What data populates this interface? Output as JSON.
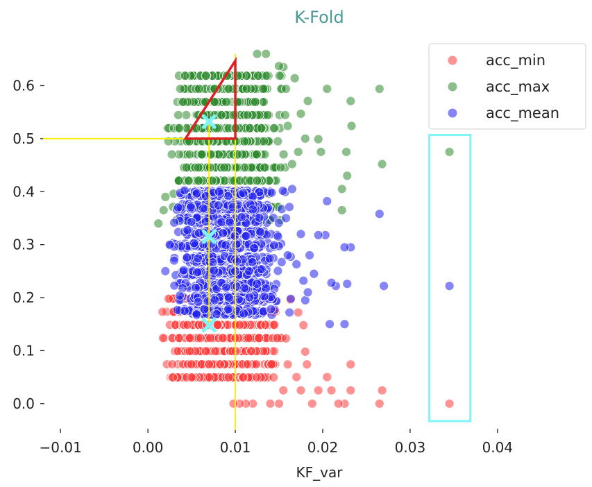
{
  "chart_data": {
    "type": "scatter",
    "title": "K-Fold",
    "xlabel": "KF_var",
    "ylabel": "",
    "xlim": [
      -0.012,
      0.047
    ],
    "ylim": [
      -0.05,
      0.67
    ],
    "x_ticks": [
      "−0.01",
      "0.00",
      "0.01",
      "0.02",
      "0.03",
      "0.04"
    ],
    "x_tick_values": [
      -0.01,
      0.0,
      0.01,
      0.02,
      0.03,
      0.04
    ],
    "y_ticks": [
      "0.0",
      "0.1",
      "0.2",
      "0.3",
      "0.4",
      "0.5",
      "0.6"
    ],
    "y_tick_values": [
      0.0,
      0.1,
      0.2,
      0.3,
      0.4,
      0.5,
      0.6
    ],
    "grid": false,
    "legend_position": "top-right",
    "series": [
      {
        "name": "acc_min",
        "color": "#ff3b3b",
        "cluster": {
          "x_range": [
            0.0015,
            0.0165
          ],
          "y_range": [
            0.025,
            0.22
          ],
          "center_x": 0.0085,
          "count": 1400
        },
        "points": [
          {
            "x": 0.0265,
            "y": 0.0
          },
          {
            "x": 0.0268,
            "y": 0.025
          },
          {
            "x": 0.0345,
            "y": 0.0
          },
          {
            "x": 0.0232,
            "y": 0.025
          },
          {
            "x": 0.0232,
            "y": 0.074
          },
          {
            "x": 0.0225,
            "y": 0.0
          },
          {
            "x": 0.0218,
            "y": 0.0
          },
          {
            "x": 0.021,
            "y": 0.025
          },
          {
            "x": 0.0205,
            "y": 0.05
          },
          {
            "x": 0.0195,
            "y": 0.025
          },
          {
            "x": 0.0188,
            "y": 0.0
          },
          {
            "x": 0.0182,
            "y": 0.074
          },
          {
            "x": 0.018,
            "y": 0.098
          },
          {
            "x": 0.0175,
            "y": 0.025
          },
          {
            "x": 0.017,
            "y": 0.05
          },
          {
            "x": 0.0178,
            "y": 0.148
          },
          {
            "x": 0.0172,
            "y": 0.172
          },
          {
            "x": 0.0163,
            "y": 0.196
          },
          {
            "x": 0.015,
            "y": 0.0
          },
          {
            "x": 0.014,
            "y": 0.0
          },
          {
            "x": 0.012,
            "y": 0.0
          },
          {
            "x": 0.0112,
            "y": 0.0
          },
          {
            "x": 0.0105,
            "y": 0.0
          },
          {
            "x": 0.0098,
            "y": 0.0
          },
          {
            "x": 0.0155,
            "y": 0.025
          },
          {
            "x": 0.016,
            "y": 0.074
          },
          {
            "x": 0.0158,
            "y": 0.123
          }
        ]
      },
      {
        "name": "acc_max",
        "color": "#2e8b2e",
        "cluster": {
          "x_range": [
            0.0018,
            0.0165
          ],
          "y_range": [
            0.34,
            0.635
          ],
          "center_x": 0.009,
          "count": 1400
        },
        "points": [
          {
            "x": 0.0345,
            "y": 0.475
          },
          {
            "x": 0.0268,
            "y": 0.452
          },
          {
            "x": 0.0265,
            "y": 0.594
          },
          {
            "x": 0.0232,
            "y": 0.571
          },
          {
            "x": 0.0233,
            "y": 0.524
          },
          {
            "x": 0.0227,
            "y": 0.475
          },
          {
            "x": 0.0228,
            "y": 0.43
          },
          {
            "x": 0.0222,
            "y": 0.405
          },
          {
            "x": 0.0222,
            "y": 0.365
          },
          {
            "x": 0.0205,
            "y": 0.594
          },
          {
            "x": 0.0195,
            "y": 0.499
          },
          {
            "x": 0.0198,
            "y": 0.475
          },
          {
            "x": 0.0183,
            "y": 0.571
          },
          {
            "x": 0.0175,
            "y": 0.547
          },
          {
            "x": 0.018,
            "y": 0.5
          },
          {
            "x": 0.0172,
            "y": 0.475
          },
          {
            "x": 0.0165,
            "y": 0.452
          },
          {
            "x": 0.016,
            "y": 0.524
          },
          {
            "x": 0.0168,
            "y": 0.614
          },
          {
            "x": 0.0158,
            "y": 0.594
          },
          {
            "x": 0.0135,
            "y": 0.66
          },
          {
            "x": 0.0125,
            "y": 0.66
          },
          {
            "x": 0.0155,
            "y": 0.635
          },
          {
            "x": 0.015,
            "y": 0.637
          },
          {
            "x": 0.0012,
            "y": 0.34
          },
          {
            "x": 0.0018,
            "y": 0.365
          },
          {
            "x": 0.002,
            "y": 0.39
          }
        ]
      },
      {
        "name": "acc_mean",
        "color": "#2020ee",
        "cluster": {
          "x_range": [
            0.002,
            0.0165
          ],
          "y_range": [
            0.15,
            0.42
          ],
          "center_x": 0.009,
          "count": 1600
        },
        "points": [
          {
            "x": 0.0345,
            "y": 0.222
          },
          {
            "x": 0.027,
            "y": 0.222
          },
          {
            "x": 0.0265,
            "y": 0.358
          },
          {
            "x": 0.0232,
            "y": 0.295
          },
          {
            "x": 0.0228,
            "y": 0.226
          },
          {
            "x": 0.0225,
            "y": 0.15
          },
          {
            "x": 0.0215,
            "y": 0.222
          },
          {
            "x": 0.0208,
            "y": 0.15
          },
          {
            "x": 0.0205,
            "y": 0.382
          },
          {
            "x": 0.0203,
            "y": 0.318
          },
          {
            "x": 0.021,
            "y": 0.228
          },
          {
            "x": 0.0195,
            "y": 0.318
          },
          {
            "x": 0.019,
            "y": 0.245
          },
          {
            "x": 0.018,
            "y": 0.195
          },
          {
            "x": 0.0183,
            "y": 0.21
          },
          {
            "x": 0.017,
            "y": 0.263
          },
          {
            "x": 0.0175,
            "y": 0.32
          },
          {
            "x": 0.0165,
            "y": 0.405
          },
          {
            "x": 0.0162,
            "y": 0.172
          },
          {
            "x": 0.016,
            "y": 0.28
          },
          {
            "x": 0.0158,
            "y": 0.35
          },
          {
            "x": 0.0225,
            "y": 0.295
          },
          {
            "x": 0.0185,
            "y": 0.28
          },
          {
            "x": 0.0178,
            "y": 0.232
          },
          {
            "x": 0.002,
            "y": 0.25
          },
          {
            "x": 0.0025,
            "y": 0.3
          },
          {
            "x": 0.003,
            "y": 0.27
          }
        ]
      }
    ],
    "annotations": {
      "markers": [
        {
          "shape": "x",
          "color": "#7ff5f5",
          "x": 0.007,
          "y": 0.532
        },
        {
          "shape": "x",
          "color": "#7ff5f5",
          "x": 0.007,
          "y": 0.315
        },
        {
          "shape": "x",
          "color": "#7ff5f5",
          "x": 0.007,
          "y": 0.148
        }
      ],
      "lines": [
        {
          "color": "#ffee00",
          "x1": -0.012,
          "y1": 0.5,
          "x2": 0.007,
          "y2": 0.5
        },
        {
          "color": "#ffee00",
          "x1": 0.007,
          "y1": 0.532,
          "x2": 0.007,
          "y2": 0.148
        },
        {
          "color": "#ffee00",
          "x1": 0.01,
          "y1": 0.66,
          "x2": 0.01,
          "y2": -0.05
        }
      ],
      "triangle": {
        "color": "#e02020",
        "points": [
          [
            0.0043,
            0.5
          ],
          [
            0.01,
            0.5
          ],
          [
            0.01,
            0.647
          ]
        ]
      },
      "box": {
        "color": "#7ff5f5",
        "x_range": [
          0.0322,
          0.0369
        ],
        "y_range": [
          -0.033,
          0.507
        ]
      }
    }
  }
}
